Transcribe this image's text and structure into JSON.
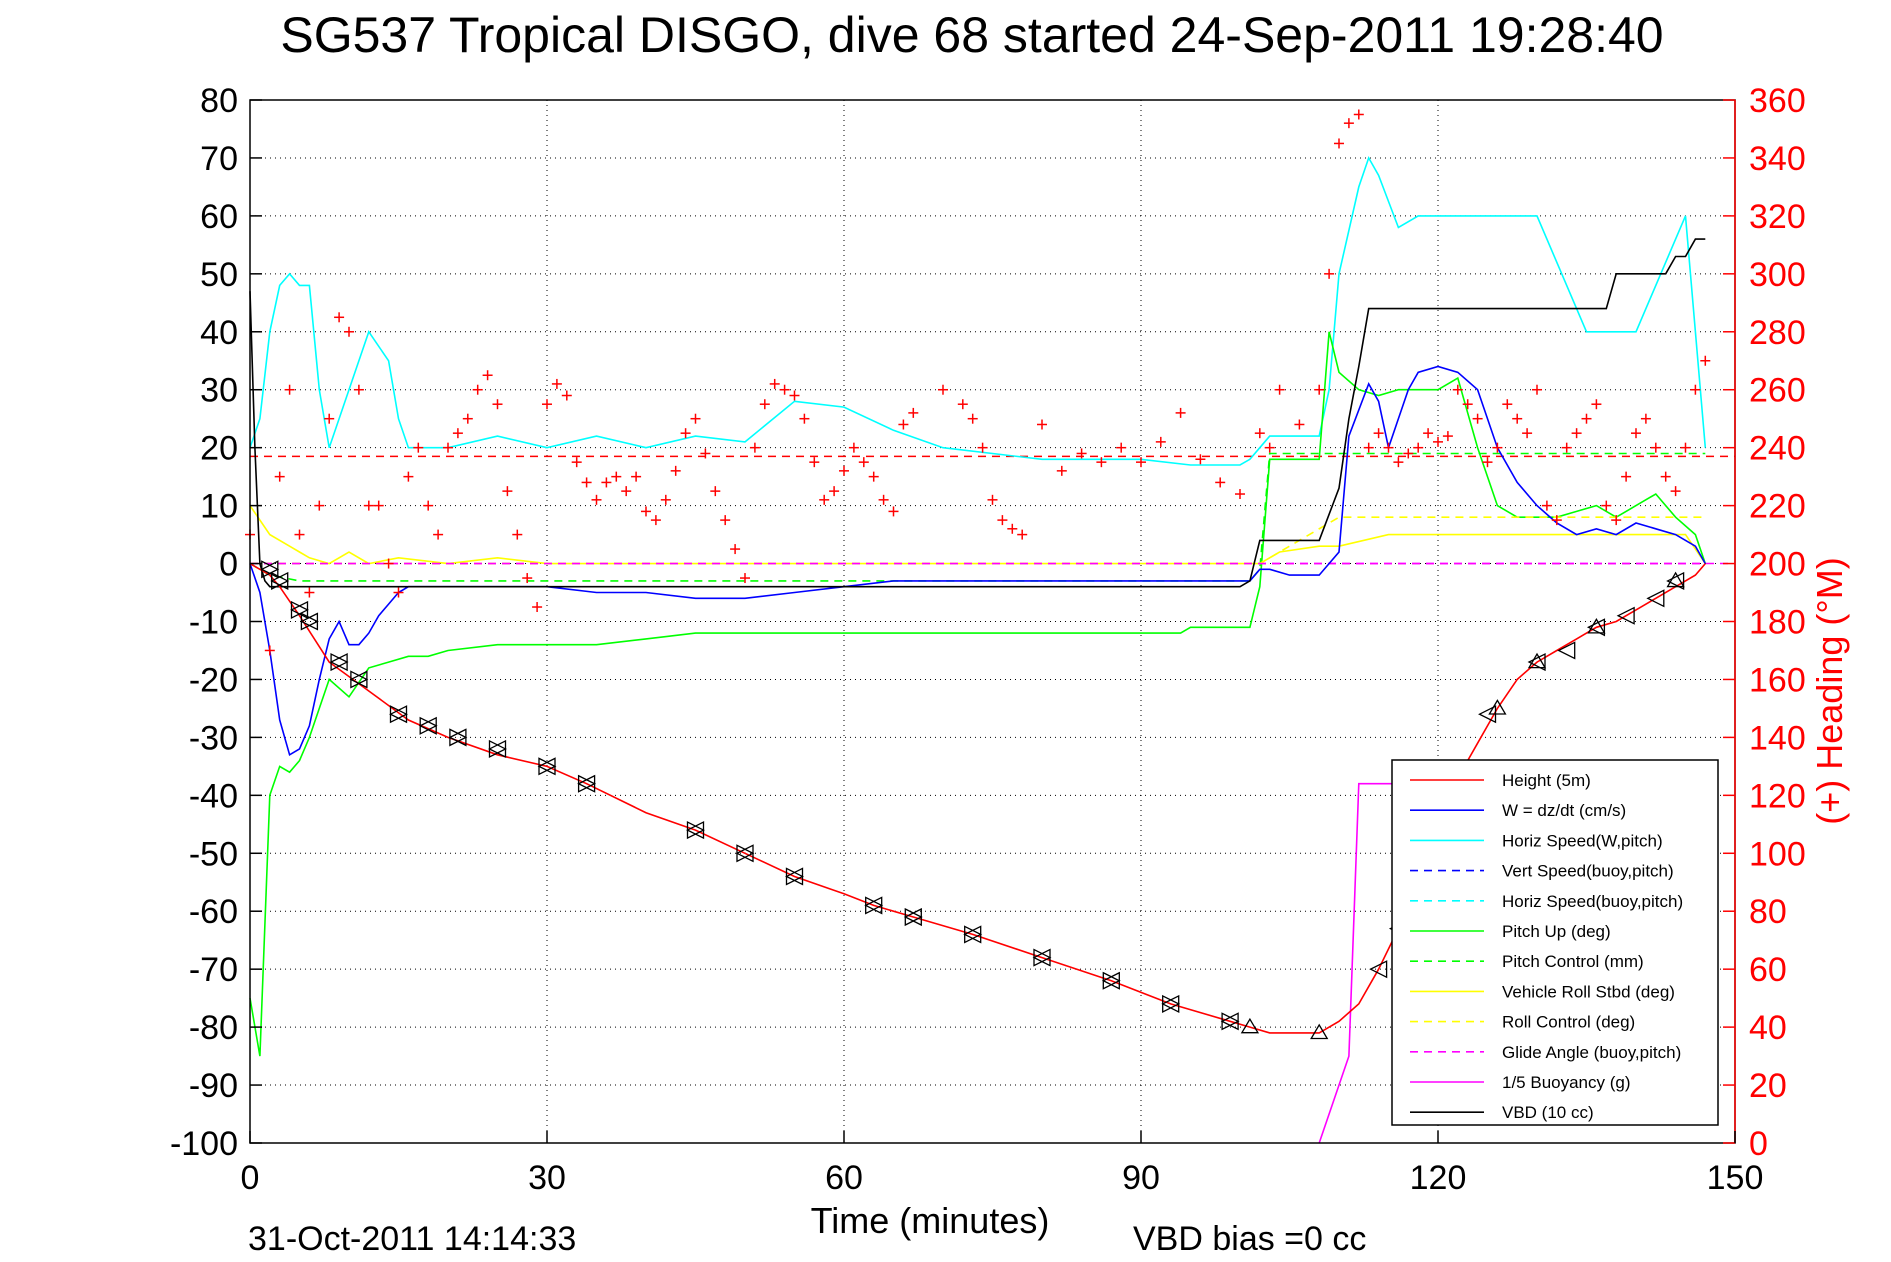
{
  "chart_data": {
    "type": "line",
    "title": "SG537 Tropical DISGO, dive 68 started 24-Sep-2011 19:28:40",
    "xlabel": "Time (minutes)",
    "ylabel": "",
    "y2label": "(+) Heading (°M)",
    "xlim": [
      0,
      150
    ],
    "ylim": [
      -100,
      80
    ],
    "y2lim": [
      0,
      360
    ],
    "xticks": [
      0,
      30,
      60,
      90,
      120,
      150
    ],
    "yticks": [
      80,
      70,
      60,
      50,
      40,
      30,
      20,
      10,
      0,
      -10,
      -20,
      -30,
      -40,
      -50,
      -60,
      -70,
      -80,
      -90,
      -100
    ],
    "y2ticks": [
      360,
      340,
      320,
      300,
      280,
      260,
      240,
      220,
      200,
      180,
      160,
      140,
      120,
      100,
      80,
      60,
      40,
      20,
      0
    ],
    "grid": true,
    "legend_position": "bottom-right",
    "footer_date": "31-Oct-2011 14:14:33",
    "footer_bias": "VBD bias =0 cc",
    "colors": {
      "red": "#ff0000",
      "blue": "#0000ff",
      "cyan": "#00ffff",
      "green": "#00ff00",
      "yellow": "#ffff00",
      "magenta": "#ff00ff",
      "black": "#000000"
    },
    "series": [
      {
        "name": "Height (5m)",
        "color": "#ff0000",
        "dash": "solid",
        "x": [
          0,
          1,
          2,
          3,
          5,
          8,
          12,
          16,
          20,
          25,
          30,
          34,
          40,
          45,
          50,
          55,
          60,
          63,
          67,
          73,
          80,
          87,
          93,
          99,
          101,
          103,
          108,
          110,
          112,
          114,
          116,
          118,
          120,
          122,
          124,
          126,
          128,
          130,
          132,
          134,
          136,
          138,
          140,
          142,
          144,
          146,
          147
        ],
        "y": [
          0,
          -1,
          -2,
          -4,
          -9,
          -17,
          -22,
          -27,
          -30,
          -33,
          -35,
          -38,
          -43,
          -46,
          -50,
          -54,
          -57,
          -59,
          -61,
          -64,
          -68,
          -72,
          -76,
          -79,
          -80,
          -81,
          -81,
          -79,
          -76,
          -70,
          -63,
          -55,
          -46,
          -37,
          -31,
          -25,
          -20,
          -17,
          -15,
          -13,
          -11,
          -10,
          -8,
          -6,
          -4,
          -2,
          0
        ]
      },
      {
        "name": "W = dz/dt (cm/s)",
        "color": "#0000ff",
        "dash": "solid",
        "x": [
          0,
          1,
          2,
          3,
          4,
          5,
          6,
          7,
          8,
          9,
          10,
          11,
          12,
          13,
          14,
          15,
          16,
          18,
          20,
          25,
          30,
          35,
          40,
          45,
          50,
          55,
          60,
          65,
          70,
          80,
          90,
          95,
          100,
          101,
          102,
          103,
          105,
          108,
          110,
          111,
          113,
          114,
          115,
          117,
          118,
          120,
          122,
          124,
          126,
          128,
          130,
          132,
          134,
          136,
          138,
          140,
          142,
          144,
          146,
          147
        ],
        "y": [
          0,
          -5,
          -15,
          -27,
          -33,
          -32,
          -28,
          -20,
          -13,
          -10,
          -14,
          -14,
          -12,
          -9,
          -7,
          -5,
          -4,
          -4,
          -4,
          -4,
          -4,
          -5,
          -5,
          -6,
          -6,
          -5,
          -4,
          -3,
          -3,
          -3,
          -3,
          -3,
          -3,
          -3,
          -1,
          -1,
          -2,
          -2,
          2,
          22,
          31,
          28,
          20,
          30,
          33,
          34,
          33,
          30,
          20,
          14,
          10,
          7,
          5,
          6,
          5,
          7,
          6,
          5,
          3,
          0
        ]
      },
      {
        "name": "Horiz Speed(W,pitch)",
        "color": "#00ffff",
        "dash": "solid",
        "x": [
          0,
          1,
          2,
          3,
          4,
          5,
          6,
          7,
          8,
          10,
          12,
          14,
          15,
          16,
          18,
          20,
          25,
          30,
          35,
          40,
          45,
          50,
          55,
          60,
          65,
          70,
          80,
          90,
          95,
          100,
          101,
          102,
          103,
          105,
          108,
          109,
          110,
          112,
          113,
          114,
          116,
          118,
          120,
          125,
          130,
          135,
          140,
          145,
          147
        ],
        "y": [
          20,
          25,
          40,
          48,
          50,
          48,
          48,
          30,
          20,
          30,
          40,
          35,
          25,
          20,
          20,
          20,
          22,
          20,
          22,
          20,
          22,
          21,
          28,
          27,
          23,
          20,
          18,
          18,
          17,
          17,
          18,
          20,
          22,
          22,
          22,
          30,
          50,
          65,
          70,
          67,
          58,
          60,
          60,
          60,
          60,
          40,
          40,
          60,
          20
        ]
      },
      {
        "name": "Vert Speed(buoy,pitch)",
        "color": "#0000ff",
        "dash": "dashed",
        "x": [],
        "y": []
      },
      {
        "name": "Horiz Speed(buoy,pitch)",
        "color": "#00ffff",
        "dash": "dashed",
        "x": [],
        "y": []
      },
      {
        "name": "Pitch Up (deg)",
        "color": "#00ff00",
        "dash": "solid",
        "x": [
          0,
          1,
          2,
          3,
          4,
          5,
          6,
          7,
          8,
          10,
          12,
          14,
          16,
          18,
          20,
          25,
          30,
          35,
          40,
          45,
          50,
          55,
          60,
          65,
          70,
          80,
          90,
          94,
          95,
          100,
          101,
          102,
          103,
          108,
          109,
          110,
          112,
          114,
          116,
          118,
          120,
          122,
          124,
          126,
          128,
          130,
          132,
          134,
          136,
          138,
          140,
          142,
          144,
          146,
          147
        ],
        "y": [
          -75,
          -85,
          -40,
          -35,
          -36,
          -34,
          -30,
          -25,
          -20,
          -23,
          -18,
          -17,
          -16,
          -16,
          -15,
          -14,
          -14,
          -14,
          -13,
          -12,
          -12,
          -12,
          -12,
          -12,
          -12,
          -12,
          -12,
          -12,
          -11,
          -11,
          -11,
          -4,
          18,
          18,
          40,
          33,
          30,
          29,
          30,
          30,
          30,
          32,
          20,
          10,
          8,
          8,
          8,
          9,
          10,
          8,
          10,
          12,
          8,
          5,
          0
        ]
      },
      {
        "name": "Pitch Control (mm)",
        "color": "#00ff00",
        "dash": "dashed",
        "x": [
          0,
          2,
          5,
          10,
          20,
          40,
          60,
          80,
          100,
          101,
          102,
          103,
          108,
          110,
          120,
          130,
          140,
          147
        ],
        "y": [
          0,
          -2,
          -3,
          -3,
          -3,
          -3,
          -3,
          -3,
          -3,
          -3,
          -1,
          19,
          19,
          19,
          19,
          19,
          19,
          19
        ]
      },
      {
        "name": "Vehicle Roll Stbd (deg)",
        "color": "#ffff00",
        "dash": "solid",
        "x": [
          0,
          2,
          4,
          5,
          6,
          8,
          10,
          12,
          15,
          20,
          25,
          30,
          40,
          50,
          60,
          70,
          80,
          90,
          100,
          102,
          104,
          108,
          110,
          115,
          120,
          125,
          130,
          135,
          140,
          145,
          147
        ],
        "y": [
          10,
          5,
          3,
          2,
          1,
          0,
          2,
          0,
          1,
          0,
          1,
          0,
          0,
          0,
          0,
          0,
          0,
          0,
          0,
          0,
          2,
          3,
          3,
          5,
          5,
          5,
          5,
          5,
          5,
          5,
          0
        ]
      },
      {
        "name": "Roll Control (deg)",
        "color": "#ffff00",
        "dash": "dashed",
        "x": [
          0,
          10,
          20,
          40,
          60,
          80,
          100,
          102,
          110,
          120,
          130,
          140,
          147
        ],
        "y": [
          0,
          0,
          0,
          0,
          0,
          0,
          0,
          0,
          8,
          8,
          8,
          8,
          8
        ]
      },
      {
        "name": "Glide Angle (buoy,pitch)",
        "color": "#ff00ff",
        "dash": "dashed",
        "x": [
          0,
          147
        ],
        "y": [
          0,
          0
        ]
      },
      {
        "name": "1/5 Buoyancy (g)",
        "color": "#ff00ff",
        "dash": "solid",
        "x": [
          108,
          111,
          112,
          118,
          120
        ],
        "y": [
          -100,
          -85,
          -38,
          -38,
          -38
        ]
      },
      {
        "name": "VBD (10 cc)",
        "color": "#000000",
        "dash": "solid",
        "x": [
          0,
          0.5,
          1,
          1.5,
          2,
          3,
          5,
          10,
          20,
          40,
          60,
          80,
          100,
          101,
          102,
          103,
          108,
          110,
          111,
          112,
          113,
          114,
          115,
          116,
          117,
          118,
          119,
          120,
          122,
          124,
          126,
          128,
          130,
          132,
          134,
          136,
          137,
          138,
          143,
          144,
          145,
          146,
          147
        ],
        "y": [
          47,
          20,
          0,
          -3,
          -4,
          -4,
          -4,
          -4,
          -4,
          -4,
          -4,
          -4,
          -4,
          -3,
          4,
          4,
          4,
          13,
          25,
          34,
          44,
          44,
          44,
          44,
          44,
          44,
          44,
          44,
          44,
          44,
          44,
          44,
          44,
          44,
          44,
          44,
          44,
          50,
          50,
          53,
          53,
          56,
          56
        ]
      }
    ],
    "heading_series": {
      "name": "(+) Heading (°M)",
      "color": "#ff0000",
      "marker": "+",
      "x": [
        0,
        2,
        3,
        4,
        5,
        6,
        7,
        8,
        9,
        10,
        11,
        12,
        13,
        14,
        15,
        16,
        17,
        18,
        19,
        20,
        21,
        22,
        23,
        24,
        25,
        26,
        27,
        28,
        29,
        30,
        31,
        32,
        33,
        34,
        35,
        36,
        37,
        38,
        39,
        40,
        41,
        42,
        43,
        44,
        45,
        46,
        47,
        48,
        49,
        50,
        51,
        52,
        53,
        54,
        55,
        56,
        57,
        58,
        59,
        60,
        61,
        62,
        63,
        64,
        65,
        66,
        67,
        70,
        72,
        73,
        74,
        75,
        76,
        77,
        78,
        80,
        82,
        84,
        86,
        88,
        90,
        92,
        94,
        96,
        98,
        100,
        102,
        103,
        104,
        106,
        108,
        109,
        110,
        111,
        112,
        113,
        114,
        115,
        116,
        117,
        118,
        119,
        120,
        121,
        122,
        123,
        124,
        125,
        126,
        127,
        128,
        129,
        130,
        131,
        132,
        133,
        134,
        135,
        136,
        137,
        138,
        139,
        140,
        141,
        142,
        143,
        144,
        145,
        146,
        147
      ],
      "y": [
        210,
        170,
        230,
        260,
        210,
        190,
        220,
        250,
        285,
        280,
        260,
        220,
        220,
        200,
        190,
        230,
        240,
        220,
        210,
        240,
        245,
        250,
        260,
        265,
        255,
        225,
        210,
        195,
        185,
        255,
        262,
        258,
        235,
        228,
        222,
        228,
        230,
        225,
        230,
        218,
        215,
        222,
        232,
        245,
        250,
        238,
        225,
        215,
        205,
        195,
        240,
        255,
        262,
        260,
        258,
        250,
        235,
        222,
        225,
        232,
        240,
        235,
        230,
        222,
        218,
        248,
        252,
        260,
        255,
        250,
        240,
        222,
        215,
        212,
        210,
        248,
        232,
        238,
        235,
        240,
        235,
        242,
        252,
        236,
        228,
        224,
        245,
        240,
        260,
        248,
        260,
        300,
        345,
        352,
        355,
        240,
        245,
        240,
        235,
        238,
        240,
        245,
        242,
        244,
        260,
        255,
        250,
        235,
        240,
        255,
        250,
        245,
        260,
        220,
        215,
        240,
        245,
        250,
        255,
        220,
        215,
        230,
        245,
        250,
        240,
        230,
        225,
        240,
        260,
        270
      ]
    },
    "reference_lines": [
      {
        "axis": "right",
        "value": 237,
        "color": "#ff0000",
        "dash": "dashed"
      },
      {
        "axis": "left",
        "value": 0,
        "color": "#ff00ff",
        "dash": "dashed"
      }
    ],
    "markers": {
      "right_triangles": [
        [
          2,
          -1
        ],
        [
          3,
          -3
        ],
        [
          5,
          -8
        ],
        [
          6,
          -10
        ],
        [
          9,
          -17
        ],
        [
          11,
          -20
        ],
        [
          15,
          -26
        ],
        [
          18,
          -28
        ],
        [
          21,
          -30
        ],
        [
          25,
          -32
        ],
        [
          30,
          -35
        ],
        [
          34,
          -38
        ],
        [
          45,
          -46
        ],
        [
          50,
          -50
        ],
        [
          55,
          -54
        ],
        [
          63,
          -59
        ],
        [
          67,
          -61
        ],
        [
          73,
          -64
        ],
        [
          80,
          -68
        ],
        [
          87,
          -72
        ],
        [
          93,
          -76
        ],
        [
          99,
          -79
        ]
      ],
      "left_triangles": [
        [
          2,
          -1
        ],
        [
          3,
          -3
        ],
        [
          5,
          -8
        ],
        [
          6,
          -10
        ],
        [
          9,
          -17
        ],
        [
          11,
          -20
        ],
        [
          15,
          -26
        ],
        [
          18,
          -28
        ],
        [
          21,
          -30
        ],
        [
          25,
          -32
        ],
        [
          30,
          -35
        ],
        [
          34,
          -38
        ],
        [
          45,
          -46
        ],
        [
          50,
          -50
        ],
        [
          55,
          -54
        ],
        [
          63,
          -59
        ],
        [
          67,
          -61
        ],
        [
          73,
          -64
        ],
        [
          80,
          -68
        ],
        [
          87,
          -72
        ],
        [
          93,
          -76
        ],
        [
          99,
          -79
        ],
        [
          114,
          -70
        ],
        [
          116,
          -63
        ],
        [
          125,
          -26
        ],
        [
          130,
          -17
        ],
        [
          133,
          -15
        ],
        [
          136,
          -11
        ],
        [
          139,
          -9
        ],
        [
          142,
          -6
        ],
        [
          144,
          -3
        ]
      ],
      "up_triangles": [
        [
          101,
          -80
        ],
        [
          108,
          -81
        ],
        [
          126,
          -25
        ],
        [
          130,
          -17
        ],
        [
          136,
          -11
        ],
        [
          144,
          -3
        ]
      ]
    }
  }
}
